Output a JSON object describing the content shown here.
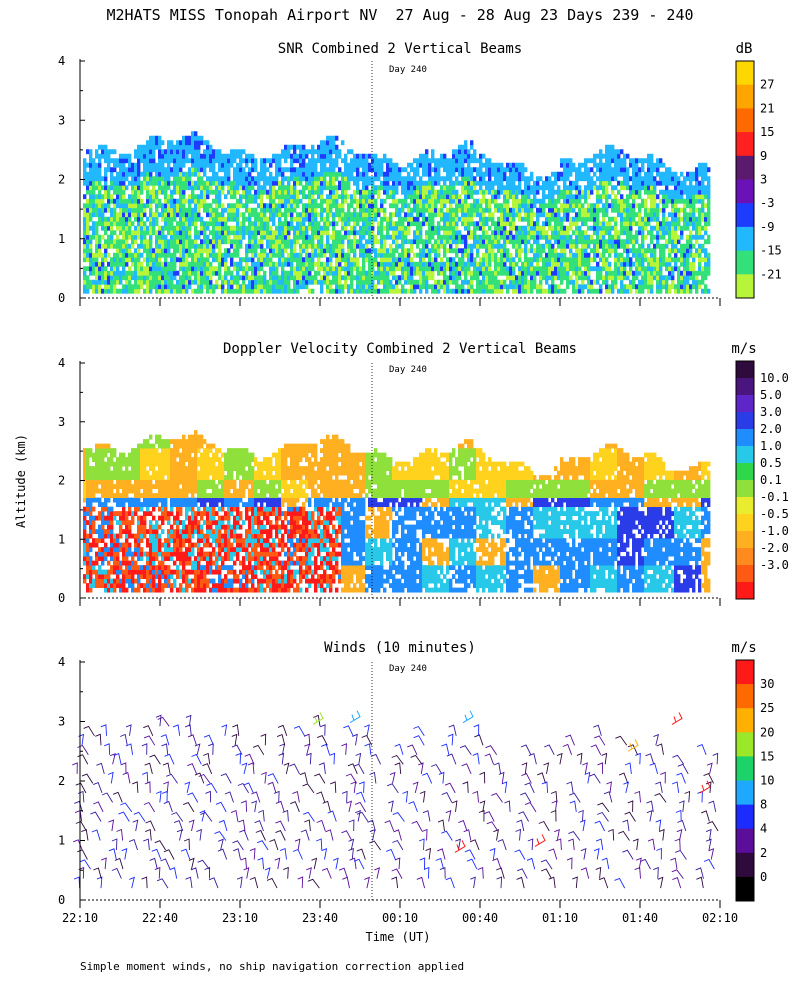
{
  "page_title": "M2HATS MISS Tonopah Airport NV  27 Aug - 28 Aug 23 Days 239 - 240",
  "footnote": "Simple moment winds, no ship navigation correction applied",
  "chart_data": [
    {
      "type": "heatmap",
      "id": "snr",
      "title": "SNR Combined 2 Vertical Beams",
      "units": "dB",
      "ylabel": "",
      "ylim": [
        0,
        4
      ],
      "yticks": [
        "0",
        "1",
        "2",
        "3",
        "4"
      ],
      "day_marker_label": "Day 240",
      "colorbar": {
        "labels": [
          "27",
          "21",
          "15",
          "9",
          "3",
          "-3",
          "-9",
          "-15",
          "-21"
        ],
        "colors": [
          "#FFD700",
          "#FFA500",
          "#FF6A00",
          "#FF2020",
          "#5A1A6E",
          "#6A11B8",
          "#1C3CFF",
          "#22B8FF",
          "#33E07A",
          "#B7F53A"
        ]
      }
    },
    {
      "type": "heatmap",
      "id": "doppler",
      "title": "Doppler Velocity Combined 2 Vertical Beams",
      "units": "m/s",
      "ylabel": "Altitude (km)",
      "ylim": [
        0,
        4
      ],
      "yticks": [
        "0",
        "1",
        "2",
        "3",
        "4"
      ],
      "day_marker_label": "Day 240",
      "colorbar": {
        "labels": [
          "10.0",
          "5.0",
          "3.0",
          "2.0",
          "1.0",
          "0.5",
          "0.1",
          "-0.1",
          "-0.5",
          "-1.0",
          "-2.0",
          "-3.0"
        ],
        "colors": [
          "#2E0A3D",
          "#4B1580",
          "#5E25C8",
          "#2A3BE8",
          "#1F8CFF",
          "#27C8E8",
          "#2ED84A",
          "#8FE03A",
          "#E8EE2E",
          "#FFD21E",
          "#FFB020",
          "#FF8A1E",
          "#FF5A14",
          "#FF1A1A"
        ]
      }
    },
    {
      "type": "wind_barbs",
      "id": "winds",
      "title": "Winds (10 minutes)",
      "units": "m/s",
      "ylabel": "",
      "ylim": [
        0,
        4
      ],
      "yticks": [
        "0",
        "1",
        "2",
        "3",
        "4"
      ],
      "day_marker_label": "Day 240",
      "xlabel": "Time (UT)",
      "xticks": [
        "22:10",
        "22:40",
        "23:10",
        "23:40",
        "00:10",
        "00:40",
        "01:10",
        "01:40",
        "02:10"
      ],
      "colorbar": {
        "labels": [
          "30",
          "25",
          "20",
          "15",
          "10",
          "8",
          "4",
          "2",
          "0"
        ],
        "colors": [
          "#FF1A1A",
          "#FF6A00",
          "#FFB000",
          "#9BE82A",
          "#1ED26A",
          "#1FA8FF",
          "#1C2CFF",
          "#5A0E9A",
          "#2E0A3D",
          "#000000"
        ]
      }
    }
  ]
}
